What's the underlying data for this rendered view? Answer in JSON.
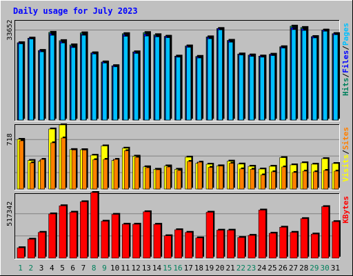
{
  "title": "Daily usage for July 2023",
  "colors": {
    "hits": "#00805c",
    "files": "#0000ff",
    "pages": "#00c0ff",
    "visits": "#ffff00",
    "sites": "#ff8000",
    "kbytes": "#ff0000",
    "title": "#0000ff",
    "weekend_day": "#00805c",
    "weekday": "#000000"
  },
  "chart_data": [
    {
      "type": "bar",
      "name": "hits-files-pages",
      "y_tick_label": "33652",
      "y_tick_value": 33652,
      "ylim": [
        0,
        37400
      ],
      "side_labels": [
        {
          "text": "Hits",
          "color_key": "hits"
        },
        {
          "text": "/",
          "color_key": "weekday"
        },
        {
          "text": "Files",
          "color_key": "files"
        },
        {
          "text": "/",
          "color_key": "weekday"
        },
        {
          "text": "Pages",
          "color_key": "pages"
        }
      ],
      "categories": [
        "1",
        "2",
        "3",
        "4",
        "5",
        "6",
        "7",
        "8",
        "9",
        "10",
        "11",
        "12",
        "13",
        "14",
        "15",
        "16",
        "17",
        "18",
        "19",
        "20",
        "21",
        "22",
        "23",
        "24",
        "25",
        "26",
        "27",
        "28",
        "29",
        "30",
        "31"
      ],
      "series": [
        {
          "name": "Hits",
          "values": [
            28900,
            30600,
            26000,
            32800,
            29700,
            28100,
            32600,
            25100,
            21700,
            20300,
            32300,
            25500,
            32700,
            31900,
            31300,
            23900,
            27700,
            23800,
            31100,
            34200,
            29800,
            24700,
            24300,
            23900,
            24600,
            27400,
            35100,
            34600,
            31200,
            33600,
            32300
          ]
        },
        {
          "name": "Files",
          "values": [
            28900,
            30600,
            26000,
            32300,
            29300,
            27600,
            32000,
            25100,
            21700,
            20300,
            31900,
            25400,
            32100,
            31500,
            31300,
            23800,
            27600,
            23600,
            30900,
            34200,
            29600,
            24600,
            24300,
            23900,
            24500,
            27300,
            34500,
            34100,
            31200,
            33600,
            32300
          ]
        },
        {
          "name": "Pages",
          "values": [
            28500,
            30300,
            25500,
            31700,
            28800,
            27100,
            31700,
            24700,
            21300,
            19900,
            31300,
            24900,
            31400,
            31100,
            30800,
            23500,
            27200,
            23200,
            30400,
            33700,
            29100,
            24300,
            23800,
            23500,
            24100,
            26900,
            33800,
            33500,
            30700,
            33200,
            31900
          ]
        }
      ]
    },
    {
      "type": "bar",
      "name": "visits-sites",
      "y_tick_label": "718",
      "y_tick_value": 718,
      "ylim": [
        0,
        940
      ],
      "side_labels": [
        {
          "text": "Visits",
          "color_key": "visits"
        },
        {
          "text": "/",
          "color_key": "weekday"
        },
        {
          "text": "Sites",
          "color_key": "sites"
        }
      ],
      "categories": [
        "1",
        "2",
        "3",
        "4",
        "5",
        "6",
        "7",
        "8",
        "9",
        "10",
        "11",
        "12",
        "13",
        "14",
        "15",
        "16",
        "17",
        "18",
        "19",
        "20",
        "21",
        "22",
        "23",
        "24",
        "25",
        "26",
        "27",
        "28",
        "29",
        "30",
        "31"
      ],
      "series": [
        {
          "name": "Visits",
          "values": [
            720,
            414,
            402,
            870,
            930,
            572,
            570,
            490,
            625,
            414,
            592,
            476,
            322,
            286,
            335,
            286,
            462,
            374,
            360,
            336,
            404,
            362,
            330,
            290,
            330,
            455,
            350,
            380,
            360,
            440,
            370
          ]
        },
        {
          "name": "Sites",
          "values": [
            700,
            380,
            430,
            670,
            740,
            567,
            565,
            425,
            430,
            430,
            555,
            460,
            310,
            280,
            320,
            270,
            400,
            390,
            314,
            334,
            374,
            292,
            286,
            205,
            250,
            320,
            240,
            260,
            250,
            270,
            260
          ]
        }
      ]
    },
    {
      "type": "bar",
      "name": "kbytes",
      "y_tick_label": "517342",
      "y_tick_value": 517342,
      "ylim": [
        0,
        757000
      ],
      "side_labels": [
        {
          "text": "KBytes",
          "color_key": "kbytes"
        }
      ],
      "categories": [
        "1",
        "2",
        "3",
        "4",
        "5",
        "6",
        "7",
        "8",
        "9",
        "10",
        "11",
        "12",
        "13",
        "14",
        "15",
        "16",
        "17",
        "18",
        "19",
        "20",
        "21",
        "22",
        "23",
        "24",
        "25",
        "26",
        "27",
        "28",
        "29",
        "30",
        "31"
      ],
      "series": [
        {
          "name": "KBytes",
          "values": [
            120000,
            220000,
            300000,
            515000,
            610000,
            535000,
            657000,
            765000,
            430000,
            510000,
            395000,
            395000,
            540000,
            394000,
            260000,
            330000,
            300000,
            235000,
            535000,
            325000,
            325000,
            240000,
            265000,
            560000,
            290000,
            360000,
            300000,
            460000,
            280000,
            600000,
            425000
          ]
        }
      ]
    }
  ],
  "weekend_days": [
    1,
    2,
    8,
    9,
    15,
    16,
    22,
    23,
    29,
    30
  ]
}
